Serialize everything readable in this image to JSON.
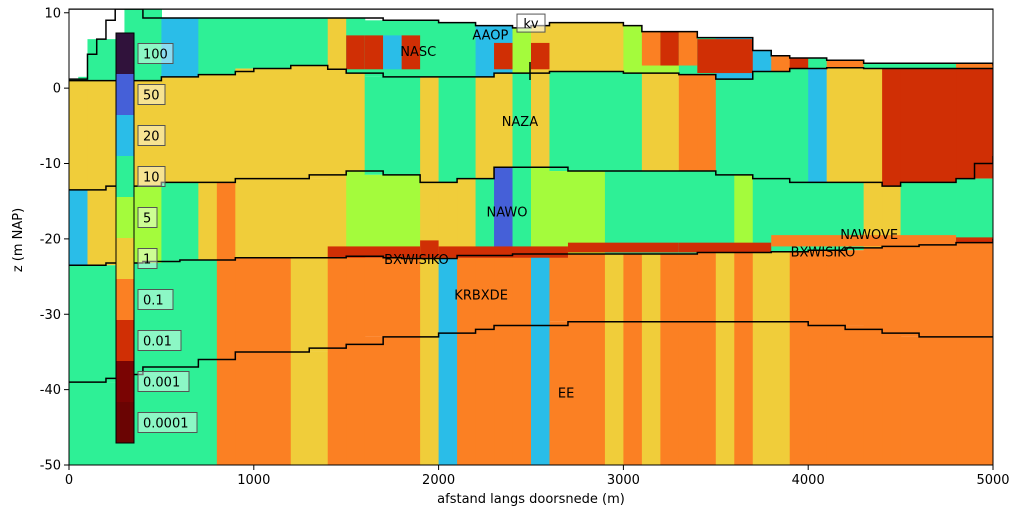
{
  "chart_data": {
    "type": "heatmap",
    "title": "",
    "xlabel": "afstand langs doorsnede (m)",
    "ylabel": "z (m NAP)",
    "xlim": [
      0,
      5000
    ],
    "ylim": [
      -50,
      10.5
    ],
    "xticks": [
      "0",
      "1000",
      "2000",
      "3000",
      "4000",
      "5000"
    ],
    "yticks": [
      "10",
      "0",
      "-10",
      "-20",
      "-30",
      "-40",
      "-50"
    ],
    "palette": {
      "A": "#2ef096",
      "B": "#2abde8",
      "C": "#f0cd3a",
      "D": "#a4fb3c",
      "E": "#fb8023",
      "F": "#d02f05",
      "G": "#4560d8",
      "H": "#30123b"
    },
    "columns": [
      {
        "x0": 0,
        "x1": 100,
        "layers": [
          "A",
          "C",
          "B",
          "A"
        ]
      },
      {
        "x0": 100,
        "x1": 300,
        "layers": [
          "A",
          "C",
          "C",
          "A"
        ]
      },
      {
        "x0": 300,
        "x1": 500,
        "layers": [
          "A",
          "C",
          "D",
          "A"
        ]
      },
      {
        "x0": 500,
        "x1": 700,
        "layers": [
          "B",
          "C",
          "A",
          "A"
        ]
      },
      {
        "x0": 700,
        "x1": 800,
        "layers": [
          "A",
          "C",
          "C",
          "A"
        ]
      },
      {
        "x0": 800,
        "x1": 900,
        "layers": [
          "A",
          "C",
          "E",
          "E"
        ]
      },
      {
        "x0": 900,
        "x1": 1200,
        "layers": [
          "A",
          "C",
          "C",
          "E"
        ]
      },
      {
        "x0": 1200,
        "x1": 1400,
        "layers": [
          "A",
          "C",
          "C",
          "C"
        ]
      },
      {
        "x0": 1400,
        "x1": 1500,
        "layers": [
          "C",
          "C",
          "C",
          "E"
        ]
      },
      {
        "x0": 1500,
        "x1": 1600,
        "layers": [
          "A",
          "C",
          "D",
          "E"
        ]
      },
      {
        "x0": 1600,
        "x1": 1900,
        "layers": [
          "A",
          "A",
          "D",
          "E"
        ]
      },
      {
        "x0": 1900,
        "x1": 2000,
        "layers": [
          "A",
          "C",
          "C",
          "C"
        ]
      },
      {
        "x0": 2000,
        "x1": 2100,
        "layers": [
          "A",
          "A",
          "C",
          "B"
        ]
      },
      {
        "x0": 2100,
        "x1": 2200,
        "layers": [
          "A",
          "A",
          "C",
          "E"
        ]
      },
      {
        "x0": 2200,
        "x1": 2300,
        "layers": [
          "B",
          "C",
          "A",
          "E"
        ]
      },
      {
        "x0": 2300,
        "x1": 2400,
        "layers": [
          "B",
          "C",
          "G",
          "E"
        ]
      },
      {
        "x0": 2400,
        "x1": 2500,
        "layers": [
          "D",
          "A",
          "A",
          "E"
        ]
      },
      {
        "x0": 2500,
        "x1": 2600,
        "layers": [
          "C",
          "C",
          "D",
          "B"
        ]
      },
      {
        "x0": 2600,
        "x1": 2900,
        "layers": [
          "C",
          "A",
          "D",
          "E"
        ]
      },
      {
        "x0": 2900,
        "x1": 3000,
        "layers": [
          "C",
          "A",
          "A",
          "C"
        ]
      },
      {
        "x0": 3000,
        "x1": 3100,
        "layers": [
          "D",
          "A",
          "A",
          "E"
        ]
      },
      {
        "x0": 3100,
        "x1": 3200,
        "layers": [
          "D",
          "C",
          "A",
          "C"
        ]
      },
      {
        "x0": 3200,
        "x1": 3300,
        "layers": [
          "D",
          "C",
          "A",
          "E"
        ]
      },
      {
        "x0": 3300,
        "x1": 3400,
        "layers": [
          "A",
          "E",
          "A",
          "E"
        ]
      },
      {
        "x0": 3400,
        "x1": 3500,
        "layers": [
          "A",
          "E",
          "A",
          "E"
        ]
      },
      {
        "x0": 3500,
        "x1": 3600,
        "layers": [
          "B",
          "A",
          "A",
          "C"
        ]
      },
      {
        "x0": 3600,
        "x1": 3700,
        "layers": [
          "B",
          "A",
          "D",
          "E"
        ]
      },
      {
        "x0": 3700,
        "x1": 3800,
        "layers": [
          "B",
          "A",
          "A",
          "C"
        ]
      },
      {
        "x0": 3800,
        "x1": 3900,
        "layers": [
          "E",
          "A",
          "A",
          "C"
        ]
      },
      {
        "x0": 3900,
        "x1": 4000,
        "layers": [
          "F",
          "A",
          "A",
          "E"
        ]
      },
      {
        "x0": 4000,
        "x1": 4100,
        "layers": [
          "A",
          "B",
          "A",
          "E"
        ]
      },
      {
        "x0": 4100,
        "x1": 4300,
        "layers": [
          "E",
          "C",
          "A",
          "E"
        ]
      },
      {
        "x0": 4300,
        "x1": 4400,
        "layers": [
          "A",
          "C",
          "C",
          "E"
        ]
      },
      {
        "x0": 4400,
        "x1": 4500,
        "layers": [
          "A",
          "F",
          "C",
          "E"
        ]
      },
      {
        "x0": 4500,
        "x1": 4800,
        "layers": [
          "A",
          "F",
          "A",
          "E"
        ]
      },
      {
        "x0": 4800,
        "x1": 5000,
        "layers": [
          "E",
          "F",
          "A",
          "E"
        ]
      }
    ],
    "thin_layers": [
      {
        "x0": 50,
        "x1": 400,
        "y_top": 1.5,
        "y_bot": 1.0,
        "color": "A"
      },
      {
        "x0": 1500,
        "x1": 1600,
        "y_top": 7.0,
        "y_bot": 2.5,
        "color": "F"
      },
      {
        "x0": 1600,
        "x1": 1700,
        "y_top": 7.0,
        "y_bot": 2.5,
        "color": "F"
      },
      {
        "x0": 1700,
        "x1": 1800,
        "y_top": 7.0,
        "y_bot": 2.5,
        "color": "B"
      },
      {
        "x0": 1800,
        "x1": 1900,
        "y_top": 7.0,
        "y_bot": 2.5,
        "color": "F"
      },
      {
        "x0": 2300,
        "x1": 2400,
        "y_top": 6.0,
        "y_bot": 2.5,
        "color": "F"
      },
      {
        "x0": 2500,
        "x1": 2600,
        "y_top": 6.0,
        "y_bot": 2.5,
        "color": "F"
      },
      {
        "x0": 3100,
        "x1": 3200,
        "y_top": 7.5,
        "y_bot": 3.0,
        "color": "E"
      },
      {
        "x0": 3200,
        "x1": 3300,
        "y_top": 7.5,
        "y_bot": 3.0,
        "color": "F"
      },
      {
        "x0": 3300,
        "x1": 3400,
        "y_top": 7.5,
        "y_bot": 3.0,
        "color": "E"
      },
      {
        "x0": 3400,
        "x1": 3700,
        "y_top": 6.5,
        "y_bot": 2.0,
        "color": "F"
      },
      {
        "x0": 1400,
        "x1": 1900,
        "y_top": -21.0,
        "y_bot": -22.5,
        "color": "F"
      },
      {
        "x0": 1900,
        "x1": 2000,
        "y_top": -20.2,
        "y_bot": -22.5,
        "color": "F"
      },
      {
        "x0": 2000,
        "x1": 2700,
        "y_top": -21.0,
        "y_bot": -22.5,
        "color": "F"
      },
      {
        "x0": 2700,
        "x1": 3300,
        "y_top": -20.5,
        "y_bot": -21.8,
        "color": "F"
      },
      {
        "x0": 3300,
        "x1": 3800,
        "y_top": -20.5,
        "y_bot": -21.8,
        "color": "F"
      },
      {
        "x0": 3800,
        "x1": 4800,
        "y_top": -19.5,
        "y_bot": -21.0,
        "color": "E"
      },
      {
        "x0": 4800,
        "x1": 5000,
        "y_top": -19.8,
        "y_bot": -20.5,
        "color": "F"
      }
    ],
    "boundaries": [
      {
        "name": "surface",
        "x": [
          0,
          100,
          200,
          300,
          400,
          500,
          700,
          1500,
          1700,
          2000,
          2200,
          2400,
          2500,
          2600,
          3000,
          3100,
          3400,
          3700,
          3800,
          3900,
          4100,
          4300,
          5000
        ],
        "y": [
          10.5,
          10.5,
          10.5,
          10.5,
          9.3,
          9.3,
          9.3,
          9.3,
          9.0,
          8.7,
          8.3,
          8.0,
          8.3,
          8.7,
          8.3,
          7.5,
          6.7,
          5.0,
          4.3,
          4.0,
          3.7,
          3.3,
          3.0
        ]
      },
      {
        "name": "left-top",
        "x": [
          0,
          100,
          150,
          200,
          250,
          300,
          5000
        ],
        "y": [
          1.2,
          4.5,
          6.5,
          9.0,
          10.5,
          10.5,
          10.5
        ]
      },
      {
        "name": "b1",
        "x": [
          0,
          100,
          300,
          500,
          700,
          900,
          1000,
          1200,
          1400,
          1500,
          1700,
          2000,
          2200,
          2300,
          2400,
          2500,
          2600,
          3000,
          3100,
          3300,
          3500,
          3700,
          3900,
          4100,
          4300,
          4500,
          5000
        ],
        "y": [
          1.0,
          1.0,
          1.0,
          1.5,
          1.8,
          2.2,
          2.6,
          3.0,
          2.5,
          2.0,
          1.5,
          1.5,
          1.5,
          2.0,
          2.0,
          2.0,
          2.2,
          2.0,
          2.0,
          1.8,
          1.2,
          2.2,
          2.6,
          2.7,
          2.6,
          2.6,
          2.6
        ]
      },
      {
        "name": "b2",
        "x": [
          0,
          200,
          400,
          500,
          700,
          900,
          1100,
          1300,
          1500,
          1700,
          1900,
          2100,
          2300,
          2500,
          2700,
          3000,
          3200,
          3300,
          3500,
          3700,
          3900,
          4100,
          4300,
          4400,
          4500,
          4700,
          4800,
          4900,
          5000
        ],
        "y": [
          -13.5,
          -13.0,
          -13.0,
          -12.5,
          -12.5,
          -12.0,
          -12.0,
          -11.5,
          -11.0,
          -11.5,
          -12.5,
          -12.0,
          -10.5,
          -10.5,
          -11.0,
          -11.0,
          -11.0,
          -11.0,
          -11.5,
          -12.0,
          -12.5,
          -12.5,
          -12.5,
          -13.0,
          -12.5,
          -12.5,
          -12.0,
          -10.0,
          -9.0
        ]
      },
      {
        "name": "b3",
        "x": [
          0,
          200,
          400,
          600,
          900,
          1200,
          1500,
          1700,
          1800,
          1900,
          2100,
          2200,
          2400,
          2600,
          2800,
          3000,
          3200,
          3400,
          3600,
          3800,
          4000,
          4200,
          4400,
          4600,
          4800,
          5000
        ],
        "y": [
          -23.5,
          -23.2,
          -23.0,
          -22.8,
          -22.5,
          -22.5,
          -22.3,
          -22.5,
          -22.6,
          -22.6,
          -22.2,
          -22.2,
          -22.0,
          -22.0,
          -22.0,
          -22.0,
          -22.0,
          -21.8,
          -21.8,
          -21.7,
          -21.5,
          -21.2,
          -21.0,
          -20.8,
          -20.5,
          -20.0
        ]
      },
      {
        "name": "b4",
        "x": [
          0,
          200,
          300,
          400,
          500,
          700,
          900,
          1100,
          1300,
          1500,
          1700,
          1800,
          1900,
          2000,
          2100,
          2200,
          2300,
          2400,
          2500,
          2600,
          2700,
          2800,
          3000,
          3200,
          3400,
          3600,
          3800,
          4000,
          4200,
          4400,
          4500,
          4600,
          4800,
          5000
        ],
        "y": [
          -39.0,
          -38.5,
          -38.0,
          -37.0,
          -37.0,
          -36.0,
          -35.0,
          -35.0,
          -34.5,
          -34.0,
          -33.0,
          -33.0,
          -33.0,
          -32.5,
          -32.5,
          -32.0,
          -31.5,
          -31.5,
          -31.5,
          -31.5,
          -31.0,
          -31.0,
          -31.0,
          -31.0,
          -31.0,
          -31.0,
          -31.0,
          -31.5,
          -32.0,
          -32.5,
          -32.5,
          -33.0,
          -33.0,
          -33.0
        ]
      },
      {
        "name": "bottom",
        "x": [
          0,
          5000
        ],
        "y": [
          -50,
          -50
        ]
      }
    ],
    "layer_labels": [
      {
        "text": "AAOP",
        "x": 2280,
        "y": 7.0
      },
      {
        "text": "kv",
        "x": 2500,
        "y": 8.5
      },
      {
        "text": "NASC",
        "x": 1890,
        "y": 4.8
      },
      {
        "text": "NAZA",
        "x": 2440,
        "y": -4.5
      },
      {
        "text": "NAWO",
        "x": 2370,
        "y": -16.5
      },
      {
        "text": "NAWOVE",
        "x": 4330,
        "y": -19.5
      },
      {
        "text": "BXWISIKO",
        "x": 1880,
        "y": -22.8
      },
      {
        "text": "BXWISIKO",
        "x": 4080,
        "y": -21.8
      },
      {
        "text": "KRBXDE",
        "x": 2230,
        "y": -27.5
      },
      {
        "text": "EE",
        "x": 2690,
        "y": -40.5
      }
    ],
    "colorbar": {
      "colors": [
        "#30123b",
        "#4560d8",
        "#2abde8",
        "#2ef096",
        "#a4fb3c",
        "#f0cd3a",
        "#fb8023",
        "#d02f05",
        "#7a0403",
        "#6a0403"
      ],
      "labels": [
        "100",
        "50",
        "20",
        "10",
        "5",
        "1",
        "0.1",
        "0.01",
        "0.001",
        "0.0001"
      ],
      "label_bg": [
        "#f0cd3a",
        "#2abde8",
        "#2abde8",
        "#2ef096",
        "#a4fb3c",
        "#f0cd3a",
        "#a4fb3c",
        "#f0cd3a",
        "#a4fb3c",
        "#2ef096"
      ]
    }
  }
}
